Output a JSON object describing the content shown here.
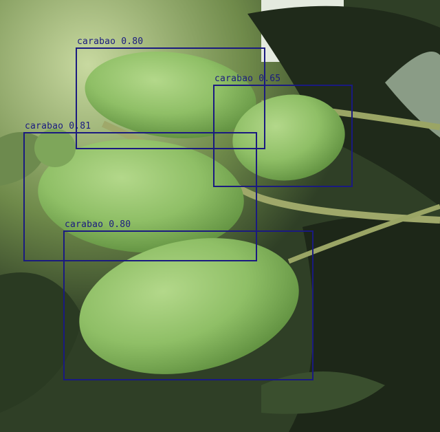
{
  "detections": [
    {
      "label": "carabao 0.80",
      "class": "carabao",
      "score": 0.8
    },
    {
      "label": "carabao 0.65",
      "class": "carabao",
      "score": 0.65
    },
    {
      "label": "carabao 0.81",
      "class": "carabao",
      "score": 0.81
    },
    {
      "label": "carabao 0.80",
      "class": "carabao",
      "score": 0.8
    }
  ],
  "colors": {
    "box": "#1a1a80",
    "mango": "#8fbf66",
    "leaf_dark": "#1f2a1a",
    "foliage": "#5f7d3e"
  }
}
